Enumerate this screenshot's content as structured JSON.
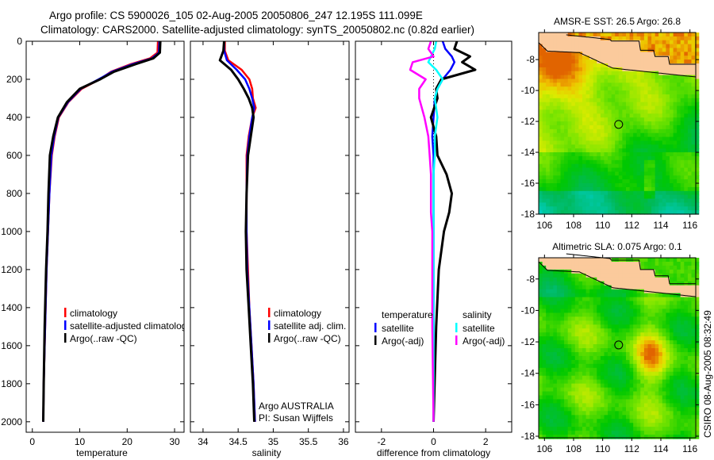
{
  "header": {
    "line1": "Argo profile: CS 5900026_105 02-Aug-2005 20050806_247 12.195S 111.099E",
    "line2": "Climatology: CARS2000. Satellite-adjusted climatology: synTS_20050802.nc (0.82d earlier)"
  },
  "side_stamp": "CSIRO 08-Aug-2005 08:32:49",
  "colors": {
    "climatology": "#ff0000",
    "satellite": "#0000ff",
    "argo": "#000000",
    "sal_satellite": "#00ffff",
    "sal_argo": "#ff00ff",
    "land": "#fbca9c"
  },
  "chart_data": [
    {
      "type": "line",
      "id": "temperature",
      "xlabel": "temperature",
      "ylabel": "",
      "xlim": [
        -1.3,
        32
      ],
      "ylim": [
        2055,
        0
      ],
      "xticks": [
        "0",
        "10",
        "20",
        "30"
      ],
      "yticks": [
        "0",
        "200",
        "400",
        "600",
        "800",
        "1000",
        "1200",
        "1400",
        "1600",
        "1800",
        "2000"
      ],
      "legend": [
        "climatology",
        "satellite-adjusted climatology",
        "Argo(..raw -QC)"
      ],
      "depth": [
        0,
        60,
        90,
        120,
        160,
        200,
        250,
        320,
        400,
        500,
        600,
        800,
        1000,
        1200,
        1500,
        1800,
        2000
      ],
      "series": [
        {
          "name": "climatology",
          "color": "#ff0000",
          "values": [
            26.5,
            26.4,
            24.8,
            20.8,
            16.6,
            14.2,
            10.4,
            7.6,
            5.6,
            4.7,
            4.1,
            3.6,
            3.3,
            3.0,
            2.7,
            2.4,
            2.3
          ]
        },
        {
          "name": "satellite-adjusted climatology",
          "color": "#0000ff",
          "values": [
            26.8,
            26.7,
            25.2,
            21.2,
            16.8,
            14.0,
            10.2,
            7.5,
            5.5,
            4.6,
            4.0,
            3.6,
            3.3,
            3.0,
            2.7,
            2.4,
            2.3
          ]
        },
        {
          "name": "Argo(..raw -QC)",
          "color": "#000000",
          "values": [
            27.0,
            26.9,
            25.5,
            21.8,
            17.2,
            14.3,
            10.0,
            7.3,
            5.4,
            4.4,
            3.7,
            3.4,
            3.2,
            2.9,
            2.6,
            2.4,
            2.3
          ]
        }
      ]
    },
    {
      "type": "line",
      "id": "salinity",
      "xlabel": "salinity",
      "xlim": [
        33.82,
        36.08
      ],
      "ylim": [
        2055,
        0
      ],
      "xticks": [
        "34",
        "34.5",
        "35",
        "35.5",
        "36"
      ],
      "legend": [
        "climatology",
        "satellite adj. clim.",
        "Argo(..raw -QC)"
      ],
      "annotation": [
        "Argo AUSTRALIA",
        "PI: Susan Wijffels"
      ],
      "depth": [
        0,
        50,
        100,
        150,
        200,
        250,
        300,
        350,
        400,
        500,
        600,
        800,
        1000,
        1200,
        1400,
        1600,
        1800,
        2000
      ],
      "series": [
        {
          "name": "climatology",
          "color": "#ff0000",
          "values": [
            34.31,
            34.31,
            34.36,
            34.55,
            34.66,
            34.7,
            34.71,
            34.75,
            34.7,
            34.65,
            34.62,
            34.62,
            34.62,
            34.64,
            34.66,
            34.69,
            34.72,
            34.74
          ]
        },
        {
          "name": "satellite adj. clim.",
          "color": "#0000ff",
          "values": [
            34.3,
            34.3,
            34.34,
            34.48,
            34.6,
            34.66,
            34.7,
            34.73,
            34.7,
            34.66,
            34.63,
            34.62,
            34.62,
            34.63,
            34.66,
            34.69,
            34.72,
            34.74
          ]
        },
        {
          "name": "Argo(..raw -QC)",
          "color": "#000000",
          "values": [
            34.3,
            34.29,
            34.24,
            34.4,
            34.5,
            34.58,
            34.65,
            34.7,
            34.72,
            34.68,
            34.64,
            34.62,
            34.61,
            34.62,
            34.65,
            34.68,
            34.71,
            34.73
          ]
        }
      ]
    },
    {
      "type": "line",
      "id": "difference",
      "xlabel": "difference from climatology",
      "xlim": [
        -3,
        3.0
      ],
      "ylim": [
        2055,
        0
      ],
      "xticks": [
        "-2",
        "0",
        "2"
      ],
      "legend_groups": [
        {
          "heading": "temperature",
          "items": [
            "satellite",
            "Argo(-adj)"
          ]
        },
        {
          "heading": "salinity",
          "items": [
            "satellite",
            "Argo(-adj)"
          ]
        }
      ],
      "depth": [
        0,
        40,
        80,
        110,
        150,
        200,
        250,
        300,
        400,
        500,
        600,
        700,
        800,
        900,
        1000,
        1200,
        1500,
        2000
      ],
      "series": [
        {
          "name": "temperature satellite",
          "color": "#0000ff",
          "values": [
            0.35,
            0.45,
            0.7,
            0.8,
            0.65,
            0.35,
            0.15,
            0.05,
            0.0,
            -0.05,
            0.0,
            0.0,
            0.0,
            0.0,
            0.0,
            0.0,
            0.0,
            0.0
          ]
        },
        {
          "name": "temperature Argo(-adj)",
          "color": "#000000",
          "values": [
            0.9,
            0.8,
            1.4,
            1.1,
            1.6,
            0.3,
            0.1,
            0.15,
            -0.1,
            0.1,
            0.15,
            0.5,
            0.7,
            0.6,
            0.4,
            0.2,
            0.1,
            0.0
          ]
        },
        {
          "name": "salinity satellite",
          "color": "#00ffff",
          "values": [
            0.1,
            0.05,
            -0.1,
            -0.2,
            0.1,
            0.35,
            0.15,
            0.05,
            0.15,
            0.05,
            0.05,
            0.0,
            0.0,
            0.0,
            0.0,
            0.0,
            0.0,
            0.0
          ]
        },
        {
          "name": "salinity Argo(-adj)",
          "color": "#ff00ff",
          "values": [
            -0.1,
            -0.2,
            0.0,
            -0.8,
            -0.9,
            -0.3,
            -0.55,
            -0.55,
            -0.35,
            -0.2,
            -0.15,
            -0.1,
            -0.1,
            -0.1,
            -0.05,
            -0.05,
            -0.05,
            0.0
          ]
        }
      ]
    },
    {
      "type": "heatmap",
      "id": "sst-map",
      "title": "AMSR-E SST: 26.5 Argo: 26.8",
      "xlim": [
        105.6,
        116.4
      ],
      "ylim": [
        -18.0,
        -6.25
      ],
      "xticks": [
        "106",
        "108",
        "110",
        "112",
        "114",
        "116"
      ],
      "yticks": [
        "-8",
        "-10",
        "-12",
        "-14",
        "-16",
        "-18"
      ],
      "float_position": {
        "lon": 111.099,
        "lat": -12.195
      }
    },
    {
      "type": "heatmap",
      "id": "sla-map",
      "title": "Altimetric SLA: 0.075 Argo: 0.1",
      "xlim": [
        105.6,
        116.4
      ],
      "ylim": [
        -18.1,
        -6.65
      ],
      "xticks": [
        "106",
        "108",
        "110",
        "112",
        "114",
        "116"
      ],
      "yticks": [
        "-8",
        "-10",
        "-12",
        "-14",
        "-16",
        "-18"
      ],
      "float_position": {
        "lon": 111.099,
        "lat": -12.195
      }
    }
  ]
}
